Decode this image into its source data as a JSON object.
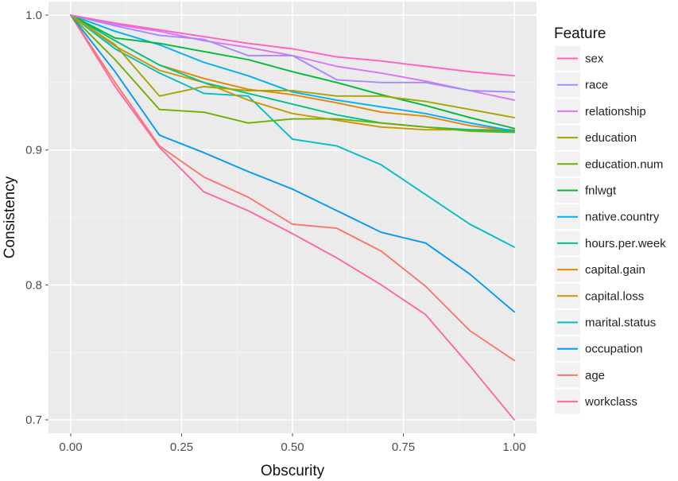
{
  "chart_data": {
    "type": "line",
    "title": "",
    "xlabel": "Obscurity",
    "ylabel": "Consistency",
    "xlim": [
      0,
      1
    ],
    "ylim": [
      0.69,
      1.01
    ],
    "x_ticks": [
      "0.00",
      "0.25",
      "0.50",
      "0.75",
      "1.00"
    ],
    "y_ticks": [
      "0.7",
      "0.8",
      "0.9",
      "1.0"
    ],
    "grid": true,
    "legend": {
      "title": "Feature",
      "placement": "right"
    },
    "x": [
      0,
      0.1,
      0.2,
      0.3,
      0.4,
      0.5,
      0.6,
      0.7,
      0.8,
      0.9,
      1.0
    ],
    "series": [
      {
        "name": "sex",
        "color": "#FF61C3",
        "values": [
          1.0,
          0.994,
          0.989,
          0.984,
          0.979,
          0.975,
          0.969,
          0.966,
          0.962,
          0.958,
          0.955
        ]
      },
      {
        "name": "race",
        "color": "#A58AFF",
        "values": [
          1.0,
          0.992,
          0.985,
          0.982,
          0.97,
          0.97,
          0.952,
          0.95,
          0.95,
          0.944,
          0.943
        ]
      },
      {
        "name": "relationship",
        "color": "#DB72FB",
        "values": [
          1.0,
          0.993,
          0.988,
          0.981,
          0.976,
          0.97,
          0.962,
          0.957,
          0.951,
          0.944,
          0.937
        ]
      },
      {
        "name": "education",
        "color": "#A3A500",
        "values": [
          1.0,
          0.978,
          0.94,
          0.947,
          0.944,
          0.944,
          0.94,
          0.94,
          0.936,
          0.93,
          0.924
        ]
      },
      {
        "name": "education.num",
        "color": "#6BB100",
        "values": [
          1.0,
          0.967,
          0.93,
          0.928,
          0.92,
          0.923,
          0.923,
          0.92,
          0.917,
          0.914,
          0.913
        ]
      },
      {
        "name": "fnlwgt",
        "color": "#00BA38",
        "values": [
          1.0,
          0.983,
          0.979,
          0.973,
          0.967,
          0.958,
          0.95,
          0.941,
          0.933,
          0.924,
          0.916
        ]
      },
      {
        "name": "native.country",
        "color": "#00B0F6",
        "values": [
          1.0,
          0.988,
          0.978,
          0.965,
          0.955,
          0.943,
          0.937,
          0.932,
          0.927,
          0.92,
          0.914
        ]
      },
      {
        "name": "hours.per.week",
        "color": "#00C08B",
        "values": [
          1.0,
          0.981,
          0.963,
          0.95,
          0.942,
          0.934,
          0.926,
          0.92,
          0.917,
          0.915,
          0.914
        ]
      },
      {
        "name": "capital.gain",
        "color": "#E58700",
        "values": [
          1.0,
          0.981,
          0.963,
          0.953,
          0.945,
          0.941,
          0.935,
          0.928,
          0.925,
          0.918,
          0.914
        ]
      },
      {
        "name": "capital.loss",
        "color": "#C99800",
        "values": [
          1.0,
          0.977,
          0.959,
          0.95,
          0.937,
          0.927,
          0.922,
          0.917,
          0.915,
          0.915,
          0.915
        ]
      },
      {
        "name": "marital.status",
        "color": "#00BFC4",
        "values": [
          1.0,
          0.975,
          0.957,
          0.942,
          0.94,
          0.908,
          0.903,
          0.889,
          0.867,
          0.845,
          0.828
        ]
      },
      {
        "name": "occupation",
        "color": "#0099F8",
        "values": [
          1.0,
          0.958,
          0.911,
          0.898,
          0.884,
          0.871,
          0.855,
          0.839,
          0.831,
          0.808,
          0.78
        ]
      },
      {
        "name": "age",
        "color": "#F8766D",
        "values": [
          1.0,
          0.95,
          0.903,
          0.88,
          0.865,
          0.845,
          0.842,
          0.825,
          0.799,
          0.766,
          0.744
        ]
      },
      {
        "name": "workclass",
        "color": "#FF67A4",
        "values": [
          1.0,
          0.947,
          0.902,
          0.869,
          0.855,
          0.838,
          0.82,
          0.8,
          0.778,
          0.74,
          0.7
        ]
      }
    ]
  }
}
